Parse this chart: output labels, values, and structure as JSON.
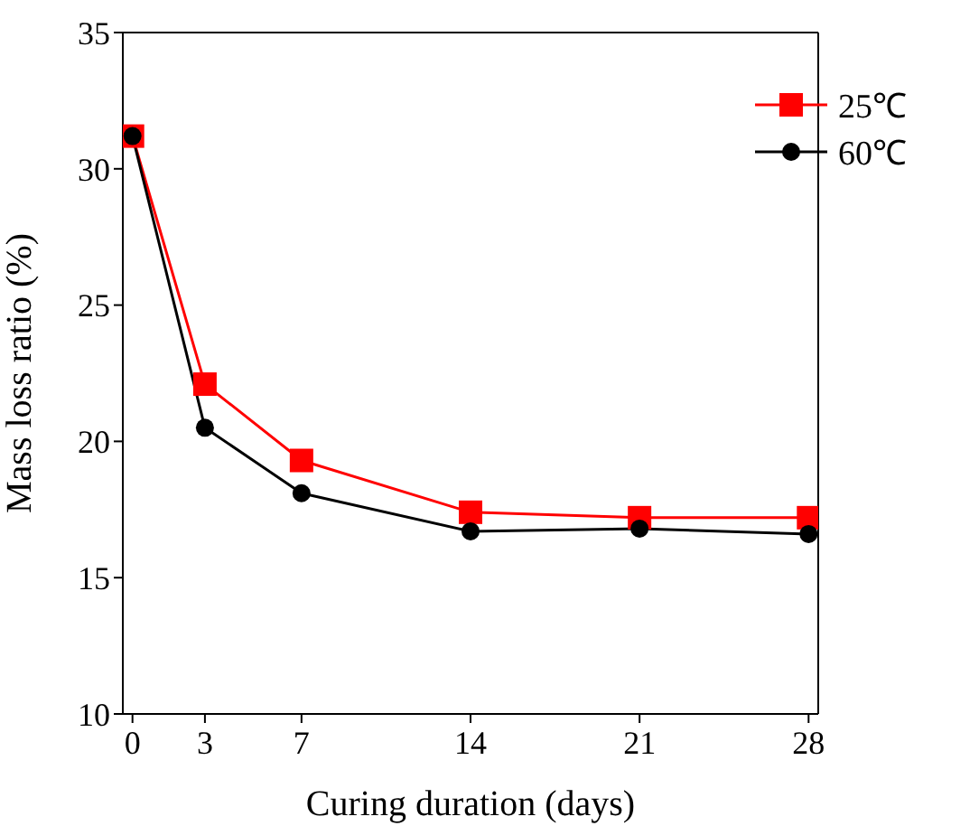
{
  "chart_data": {
    "type": "line",
    "xlabel": "Curing duration (days)",
    "ylabel": "Mass loss ratio (%)",
    "x": [
      0,
      3,
      7,
      14,
      21,
      28
    ],
    "series": [
      {
        "name": "25℃",
        "color": "#ff0000",
        "marker": "square",
        "values": [
          31.2,
          22.1,
          19.3,
          17.4,
          17.2,
          17.2
        ]
      },
      {
        "name": "60℃",
        "color": "#000000",
        "marker": "circle",
        "values": [
          31.2,
          20.5,
          18.1,
          16.7,
          16.8,
          16.6
        ]
      }
    ],
    "xlim": [
      -0.4,
      28.4
    ],
    "xticks": [
      0,
      3,
      7,
      14,
      21,
      28
    ],
    "ylim": [
      10,
      35
    ],
    "yticks": [
      10,
      15,
      20,
      25,
      30,
      35
    ],
    "grid": false,
    "legend": "top right",
    "line_style": "solid"
  }
}
